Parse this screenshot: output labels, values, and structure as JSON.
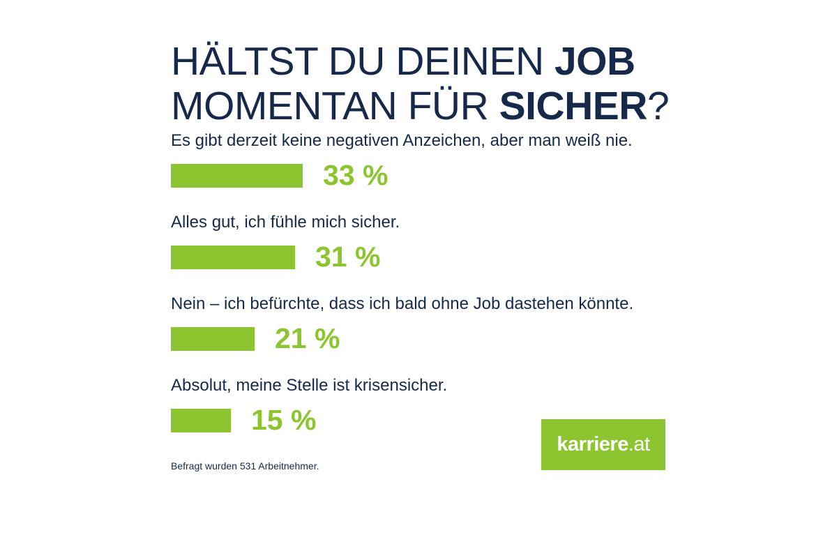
{
  "header": {
    "line1_prefix": "HÄLTST DU DEINEN ",
    "line1_bold": "JOB",
    "line2_prefix": "MOMENTAN FÜR ",
    "line2_bold": "SICHER",
    "line2_suffix": "?"
  },
  "chart_data": {
    "type": "bar",
    "orientation": "horizontal",
    "title": "HÄLTST DU DEINEN JOB MOMENTAN FÜR SICHER?",
    "categories": [
      "Es gibt derzeit keine negativen Anzeichen, aber man weiß nie.",
      "Alles gut, ich fühle mich sicher.",
      "Nein – ich befürchte, dass ich bald ohne Job dastehen könnte.",
      "Absolut, meine Stelle ist krisensicher."
    ],
    "values": [
      33,
      31,
      21,
      15
    ],
    "value_labels": [
      "33 %",
      "31 %",
      "21 %",
      "15 %"
    ],
    "unit": "%",
    "bar_color": "#8dc530",
    "grid": false,
    "legend": "none"
  },
  "footnote": "Befragt wurden 531 Arbeitnehmer.",
  "logo": {
    "strong": "karriere",
    "light": ".at",
    "background": "#8dc530"
  },
  "colors": {
    "text": "#16294a",
    "accent": "#8dc530"
  }
}
